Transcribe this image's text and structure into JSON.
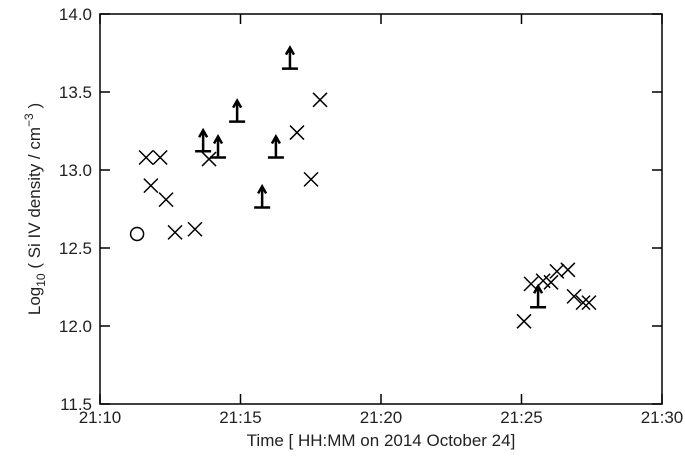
{
  "chart_data": {
    "type": "scatter",
    "xlabel": "Time [ HH:MM on 2014 October 24]",
    "ylabel": {
      "parts": [
        "Log",
        "10",
        " ( Si IV density / cm",
        "−3",
        " )"
      ]
    },
    "xlim": [
      1270,
      1290
    ],
    "xticks": [
      {
        "value": 1270,
        "label": "21:10"
      },
      {
        "value": 1275,
        "label": "21:15"
      },
      {
        "value": 1280,
        "label": "21:20"
      },
      {
        "value": 1285,
        "label": "21:25"
      },
      {
        "value": 1290,
        "label": "21:30"
      }
    ],
    "ylim": [
      11.5,
      14.0
    ],
    "yticks": [
      11.5,
      {
        "value": 12,
        "label": "12.0"
      },
      12.5,
      {
        "value": 13,
        "label": "13.0"
      },
      13.5,
      {
        "value": 14,
        "label": "14.0"
      }
    ],
    "color": "#000000",
    "series": [
      {
        "marker": "circle",
        "x": [
          1271.32
        ],
        "values": [
          12.59
        ]
      },
      {
        "marker": "cross",
        "x": [
          1271.64,
          1272.14,
          1271.81,
          1272.35,
          1272.67,
          1273.38,
          1273.88,
          1277.01,
          1277.51,
          1277.83,
          1285.09,
          1285.34,
          1285.77,
          1286.05,
          1286.26,
          1286.65,
          1286.87,
          1287.19,
          1287.4
        ],
        "values": [
          13.08,
          13.08,
          12.9,
          12.81,
          12.6,
          12.62,
          13.07,
          13.24,
          12.94,
          13.45,
          12.03,
          12.27,
          12.29,
          12.28,
          12.35,
          12.36,
          12.19,
          12.15,
          12.15
        ]
      },
      {
        "marker": "lower-limit",
        "x": [
          1273.67,
          1274.2,
          1274.88,
          1275.77,
          1276.26,
          1276.76,
          1285.59
        ],
        "values": [
          13.12,
          13.08,
          13.31,
          12.76,
          13.08,
          13.65,
          12.12
        ]
      }
    ]
  }
}
